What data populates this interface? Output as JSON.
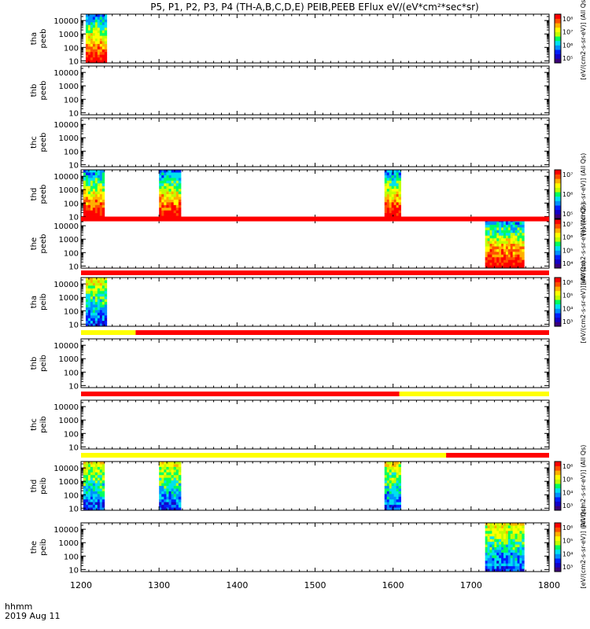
{
  "title": "P5, P1, P2, P3, P4 (TH-A,B,C,D,E) PEIB,PEEB EFlux eV/(eV*cm²*sec*sr)",
  "colors": {
    "flag_red": "#ff0000",
    "flag_yellow": "#ffff00",
    "frame": "#000000"
  },
  "colormap": [
    "#3b0078",
    "#1400c8",
    "#0020ff",
    "#0090ff",
    "#00e0f0",
    "#00ff60",
    "#c0ff00",
    "#ffff00",
    "#ffb000",
    "#ff5000",
    "#ff0000"
  ],
  "time_footer": {
    "unit": "hhmm",
    "date": "2019 Aug 11"
  },
  "chart_data": {
    "type": "heatmap",
    "x": {
      "label": "hhmm",
      "range": [
        1200,
        1800
      ],
      "ticks": [
        "1200",
        "1300",
        "1400",
        "1500",
        "1600",
        "1700",
        "1800"
      ]
    },
    "y": {
      "scale": "log",
      "range": [
        7,
        30000
      ],
      "ticks": [
        "10",
        "100",
        "1000",
        "10000"
      ]
    },
    "panels": [
      {
        "id": "tha_peeb",
        "label": [
          "tha",
          "peeb"
        ],
        "data_intervals": [
          [
            1206,
            1233
          ]
        ],
        "colorbar": {
          "label": "[eV/(cm2-s-sr-eV)] (All Qs)",
          "ticks": [
            "10⁸",
            "10⁷",
            "10⁶",
            "10⁵"
          ]
        }
      },
      {
        "id": "thb_peeb",
        "label": [
          "thb",
          "peeb"
        ],
        "data_intervals": []
      },
      {
        "id": "thc_peeb",
        "label": [
          "thc",
          "peeb"
        ],
        "data_intervals": []
      },
      {
        "id": "thd_peeb",
        "label": [
          "thd",
          "peeb"
        ],
        "data_intervals": [
          [
            1203,
            1230
          ],
          [
            1300,
            1328
          ],
          [
            1589,
            1610
          ]
        ],
        "colorbar": {
          "label": "[eV/(cm2-s-sr-eV)] (All Qs)",
          "ticks": [
            "10⁷",
            "10⁶",
            "10⁵"
          ]
        }
      },
      {
        "id": "the_peeb",
        "label": [
          "the",
          "peeb"
        ],
        "data_intervals": [
          [
            1718,
            1768
          ]
        ],
        "colorbar": {
          "label": "[eV/(cm2-s-sr-eV)] (All Qs)",
          "ticks": [
            "10⁷",
            "10⁶",
            "10⁵",
            "10⁴"
          ]
        }
      },
      {
        "id": "tha_peib",
        "label": [
          "tha",
          "peib"
        ],
        "data_intervals": [
          [
            1206,
            1233
          ]
        ],
        "colorbar": {
          "label": "[eV/(cm2-s-sr-eV)] (All Qs)",
          "ticks": [
            "10⁶",
            "10⁵",
            "10⁴",
            "10³"
          ]
        }
      },
      {
        "id": "thb_peib",
        "label": [
          "thb",
          "peib"
        ],
        "data_intervals": []
      },
      {
        "id": "thc_peib",
        "label": [
          "thc",
          "peib"
        ],
        "data_intervals": []
      },
      {
        "id": "thd_peib",
        "label": [
          "thd",
          "peib"
        ],
        "data_intervals": [
          [
            1203,
            1230
          ],
          [
            1300,
            1328
          ],
          [
            1589,
            1610
          ]
        ],
        "colorbar": {
          "label": "[eV/(cm2-s-sr-eV)] (All Qs)",
          "ticks": [
            "10⁶",
            "10⁵",
            "10⁴",
            "10³"
          ]
        }
      },
      {
        "id": "the_peib",
        "label": [
          "the",
          "peib"
        ],
        "data_intervals": [
          [
            1718,
            1768
          ]
        ],
        "colorbar": {
          "label": "[eV/(cm2-s-sr-eV)] (All Qs)",
          "ticks": [
            "10⁶",
            "10⁵",
            "10⁴",
            "10³"
          ]
        }
      }
    ],
    "flag_bars": [
      {
        "after_panel": 4,
        "segments": [
          [
            1200,
            1800,
            "red"
          ]
        ]
      },
      {
        "after_panel": 5,
        "segments": [
          [
            1200,
            1800,
            "red"
          ]
        ]
      },
      {
        "after_panel": 6,
        "segments": [
          [
            1200,
            1270,
            "yellow"
          ],
          [
            1270,
            1800,
            "red"
          ]
        ]
      },
      {
        "after_panel": 7,
        "segments": [
          [
            1200,
            1608,
            "red"
          ],
          [
            1608,
            1800,
            "yellow"
          ]
        ]
      },
      {
        "after_panel": 8,
        "segments": [
          [
            1200,
            1668,
            "yellow"
          ],
          [
            1668,
            1800,
            "red"
          ]
        ]
      }
    ]
  }
}
